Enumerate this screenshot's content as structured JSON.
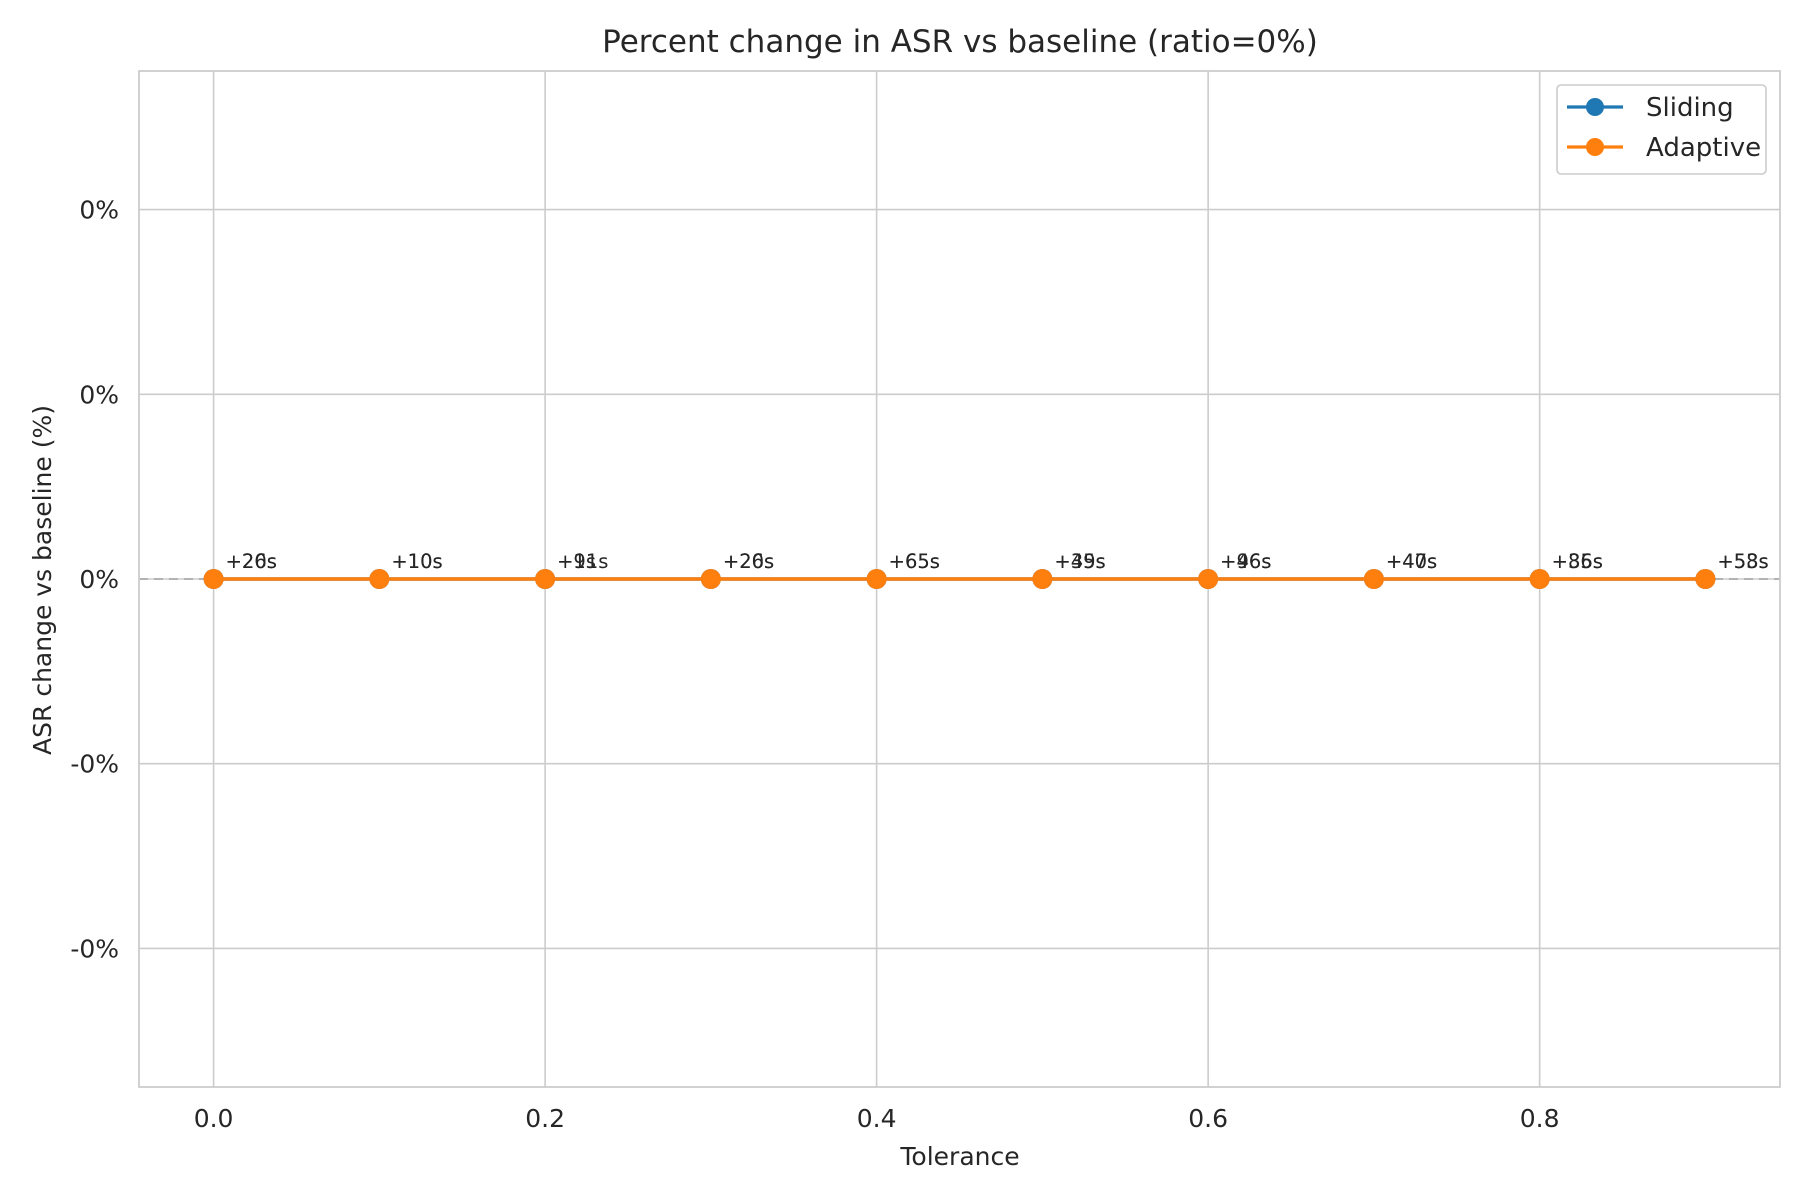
{
  "chart_data": {
    "type": "line",
    "title": "Percent change in ASR vs baseline (ratio=0%)",
    "xlabel": "Tolerance",
    "ylabel": "ASR change vs baseline (%)",
    "xlim": [
      -0.045,
      0.945
    ],
    "ylim": [
      -0.0275,
      0.0275
    ],
    "x_ticks": [
      0.0,
      0.2,
      0.4,
      0.6,
      0.8
    ],
    "x_tick_labels": [
      "0.0",
      "0.2",
      "0.4",
      "0.6",
      "0.8"
    ],
    "y_ticks": [
      0.02,
      0.01,
      0.0,
      -0.01,
      -0.02
    ],
    "y_tick_labels": [
      "0%",
      "0%",
      "0%",
      "-0%",
      "-0%"
    ],
    "grid": true,
    "legend_position": "top-right",
    "baseline_reference": 0,
    "x": [
      0.0,
      0.1,
      0.2,
      0.3,
      0.4,
      0.5,
      0.6,
      0.7,
      0.8,
      0.9
    ],
    "series": [
      {
        "name": "Sliding",
        "color": "#1f77b4",
        "values": [
          0,
          0,
          0,
          0,
          0,
          0,
          0,
          0,
          0,
          0
        ],
        "annotations": [
          "+20s",
          "+10s",
          "+9s",
          "+26s",
          "+65s",
          "+49s",
          "+96s",
          "+47s",
          "+86s",
          "+58s"
        ]
      },
      {
        "name": "Adaptive",
        "color": "#ff7f0e",
        "values": [
          0,
          0,
          0,
          0,
          0,
          0,
          0,
          0,
          0,
          0
        ],
        "annotations": [
          "+26s",
          "+10s",
          "+11s",
          "+20s",
          "+65s",
          "+35s",
          "+46s",
          "+40s",
          "+35s",
          "+53s"
        ]
      }
    ]
  }
}
